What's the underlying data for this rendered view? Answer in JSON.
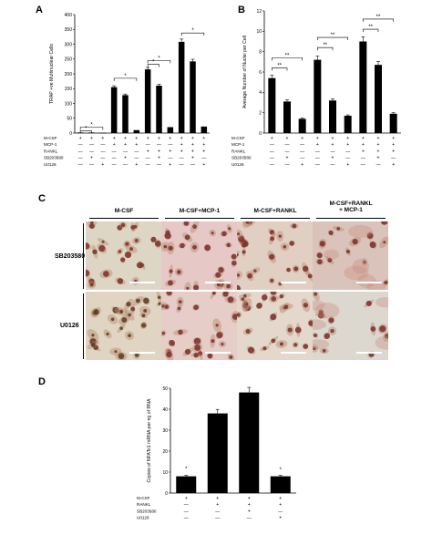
{
  "panels": {
    "A": "A",
    "B": "B",
    "C": "C",
    "D": "D"
  },
  "panelA": {
    "chart_data": {
      "type": "bar",
      "ylabel": "TRAP +ve Multinuclear Cells",
      "ylim": [
        0,
        400
      ],
      "yticks": [
        "0",
        "50",
        "100",
        "150",
        "200",
        "250",
        "300",
        "350",
        "400"
      ],
      "values": [
        2,
        2,
        1,
        155,
        128,
        10,
        215,
        160,
        20,
        308,
        242,
        22
      ],
      "sig_label": "*",
      "conditions": [
        {
          "name": "M-CSF",
          "marks": [
            "+",
            "+",
            "+",
            "+",
            "+",
            "+",
            "+",
            "+",
            "+",
            "+",
            "+",
            "+"
          ]
        },
        {
          "name": "MCP-1",
          "marks": [
            "-",
            "-",
            "-",
            "+",
            "+",
            "+",
            "-",
            "-",
            "-",
            "+",
            "+",
            "+"
          ]
        },
        {
          "name": "RANKL",
          "marks": [
            "-",
            "-",
            "-",
            "-",
            "-",
            "-",
            "+",
            "+",
            "+",
            "+",
            "+",
            "+"
          ]
        },
        {
          "name": "SB203580",
          "marks": [
            "-",
            "+",
            "-",
            "-",
            "+",
            "-",
            "-",
            "+",
            "-",
            "-",
            "+",
            "-"
          ]
        },
        {
          "name": "U0126",
          "marks": [
            "-",
            "-",
            "+",
            "-",
            "-",
            "+",
            "-",
            "-",
            "+",
            "-",
            "-",
            "+"
          ]
        }
      ]
    }
  },
  "panelB": {
    "chart_data": {
      "type": "bar",
      "ylabel": "Average Number of Nuclei per Cell",
      "ylim": [
        0,
        12
      ],
      "yticks": [
        "0",
        "2",
        "4",
        "6",
        "8",
        "10",
        "12"
      ],
      "values": [
        5.4,
        3.1,
        1.4,
        7.2,
        3.2,
        1.7,
        9.0,
        6.7,
        1.9
      ],
      "sig_label": "**",
      "conditions": [
        {
          "name": "M-CSF",
          "marks": [
            "+",
            "+",
            "+",
            "+",
            "+",
            "+",
            "+",
            "+",
            "+"
          ]
        },
        {
          "name": "MCP-1",
          "marks": [
            "-",
            "-",
            "-",
            "+",
            "+",
            "+",
            "+",
            "+",
            "+"
          ]
        },
        {
          "name": "RANKL",
          "marks": [
            "-",
            "-",
            "-",
            "-",
            "-",
            "-",
            "+",
            "+",
            "+"
          ]
        },
        {
          "name": "SB203580",
          "marks": [
            "-",
            "+",
            "-",
            "-",
            "+",
            "-",
            "-",
            "+",
            "-"
          ]
        },
        {
          "name": "U0126",
          "marks": [
            "-",
            "-",
            "+",
            "-",
            "-",
            "+",
            "-",
            "-",
            "+"
          ]
        }
      ]
    }
  },
  "panelC": {
    "columns": [
      "M-CSF",
      "M-CSF+MCP-1",
      "M-CSF+RANKL",
      "M-CSF+RANKL\n+ MCP-1"
    ],
    "rows": [
      "SB203580",
      "U0126"
    ]
  },
  "panelD": {
    "chart_data": {
      "type": "bar",
      "ylabel": "Copies of NFATc1 mRNA per ng of RNA",
      "ylim": [
        0,
        50
      ],
      "yticks": [
        "0",
        "10",
        "20",
        "30",
        "40",
        "50"
      ],
      "values": [
        8,
        38,
        48,
        8
      ],
      "sig_label": "*",
      "conditions": [
        {
          "name": "M-CSF",
          "marks": [
            "+",
            "+",
            "+",
            "+"
          ]
        },
        {
          "name": "RANKL",
          "marks": [
            "-",
            "+",
            "+",
            "+"
          ]
        },
        {
          "name": "SB203580",
          "marks": [
            "-",
            "-",
            "+",
            "-"
          ]
        },
        {
          "name": "U0126",
          "marks": [
            "-",
            "-",
            "-",
            "+"
          ]
        }
      ]
    }
  }
}
